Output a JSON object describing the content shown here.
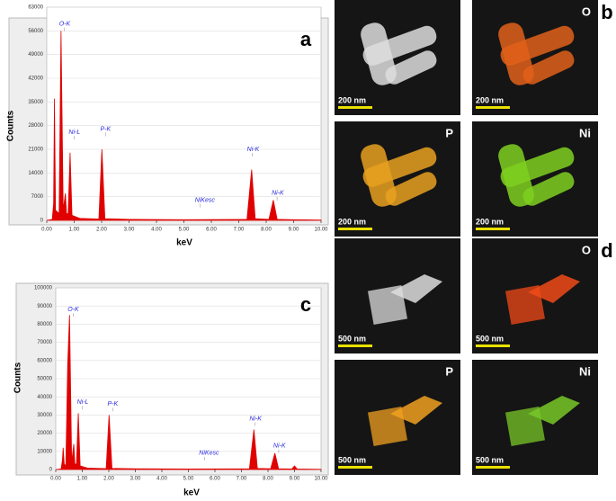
{
  "chart_data": [
    {
      "type": "area",
      "panel": "a",
      "xlabel": "keV",
      "ylabel": "Counts",
      "color": "#e00000",
      "xlim": [
        0,
        10
      ],
      "ylim": [
        0,
        63000
      ],
      "xticks": [
        {
          "value": 0,
          "label": "0.00"
        },
        {
          "value": 1,
          "label": "1.00"
        },
        {
          "value": 2,
          "label": "2.00"
        },
        {
          "value": 3,
          "label": "3.00"
        },
        {
          "value": 4,
          "label": "4.00"
        },
        {
          "value": 5,
          "label": "5.00"
        },
        {
          "value": 6,
          "label": "6.00"
        },
        {
          "value": 7,
          "label": "7.00"
        },
        {
          "value": 8,
          "label": "8.00"
        },
        {
          "value": 9,
          "label": "9.00"
        },
        {
          "value": 10,
          "label": "10.00"
        }
      ],
      "yticks": [
        0,
        7000,
        14000,
        21000,
        28000,
        35000,
        42000,
        49000,
        56000,
        63000
      ],
      "x": [
        0,
        0.2,
        0.25,
        0.28,
        0.32,
        0.45,
        0.52,
        0.6,
        0.68,
        0.72,
        0.78,
        0.85,
        0.92,
        1.2,
        1.9,
        2.01,
        2.12,
        3,
        5,
        7.3,
        7.47,
        7.6,
        8.1,
        8.26,
        8.4,
        9,
        10
      ],
      "values": [
        0,
        300,
        5000,
        36000,
        3000,
        2000,
        56000,
        3000,
        8000,
        2000,
        2000,
        20000,
        1500,
        600,
        400,
        21000,
        500,
        300,
        200,
        300,
        15000,
        500,
        300,
        6000,
        300,
        200,
        100
      ],
      "annotations": [
        {
          "text": "O-K",
          "x": 0.45,
          "y": 58000
        },
        {
          "text": "Ni-L",
          "x": 0.8,
          "y": 26000
        },
        {
          "text": "P-K",
          "x": 1.95,
          "y": 27000
        },
        {
          "text": "NiKesc",
          "x": 5.4,
          "y": 6000
        },
        {
          "text": "Ni-K",
          "x": 7.3,
          "y": 21000
        },
        {
          "text": "Ni-K",
          "x": 8.2,
          "y": 8000
        }
      ]
    },
    {
      "type": "area",
      "panel": "c",
      "xlabel": "keV",
      "ylabel": "Counts",
      "color": "#e00000",
      "xlim": [
        0,
        10
      ],
      "ylim": [
        0,
        100000
      ],
      "xticks": [
        {
          "value": 0,
          "label": "0.00"
        },
        {
          "value": 1,
          "label": "1.00"
        },
        {
          "value": 2,
          "label": "2.00"
        },
        {
          "value": 3,
          "label": "3.00"
        },
        {
          "value": 4,
          "label": "4.00"
        },
        {
          "value": 5,
          "label": "5.00"
        },
        {
          "value": 6,
          "label": "6.00"
        },
        {
          "value": 7,
          "label": "7.00"
        },
        {
          "value": 8,
          "label": "8.00"
        },
        {
          "value": 9,
          "label": "9.00"
        },
        {
          "value": 10,
          "label": "10.00"
        }
      ],
      "yticks": [
        0,
        10000,
        20000,
        30000,
        40000,
        50000,
        60000,
        70000,
        80000,
        90000,
        100000
      ],
      "x": [
        0,
        0.2,
        0.25,
        0.28,
        0.32,
        0.38,
        0.45,
        0.52,
        0.6,
        0.68,
        0.72,
        0.78,
        0.85,
        0.92,
        1.2,
        1.9,
        2.01,
        2.12,
        3,
        5,
        7.3,
        7.47,
        7.6,
        8.1,
        8.26,
        8.4,
        8.9,
        9.0,
        9.1,
        10
      ],
      "values": [
        0,
        300,
        5000,
        12000,
        3000,
        2000,
        58000,
        85000,
        4000,
        14000,
        3000,
        3000,
        31000,
        2000,
        800,
        500,
        30000,
        600,
        400,
        300,
        400,
        22000,
        600,
        400,
        9000,
        400,
        300,
        2000,
        300,
        100
      ],
      "annotations": [
        {
          "text": "O-K",
          "x": 0.45,
          "y": 88000
        },
        {
          "text": "Ni-L",
          "x": 0.8,
          "y": 37000
        },
        {
          "text": "P-K",
          "x": 1.95,
          "y": 36000
        },
        {
          "text": "NiKesc",
          "x": 5.4,
          "y": 9000
        },
        {
          "text": "Ni-K",
          "x": 7.3,
          "y": 28000
        },
        {
          "text": "Ni-K",
          "x": 8.2,
          "y": 13000
        }
      ]
    }
  ],
  "panels": [
    {
      "letter": "b",
      "maps": [
        {
          "scale": "200 nm",
          "color": "#dddddd"
        },
        {
          "element": "O",
          "scale": "200 nm",
          "color": "#e0601a"
        },
        {
          "element": "P",
          "scale": "200 nm",
          "color": "#e8a020"
        },
        {
          "element": "Ni",
          "scale": "200 nm",
          "color": "#7fd020"
        }
      ]
    },
    {
      "letter": "d",
      "maps": [
        {
          "scale": "500 nm",
          "color": "#dddddd"
        },
        {
          "element": "O",
          "scale": "500 nm",
          "color": "#f04a18"
        },
        {
          "element": "P",
          "scale": "500 nm",
          "color": "#f0a020"
        },
        {
          "element": "Ni",
          "scale": "500 nm",
          "color": "#78c828"
        }
      ]
    }
  ]
}
